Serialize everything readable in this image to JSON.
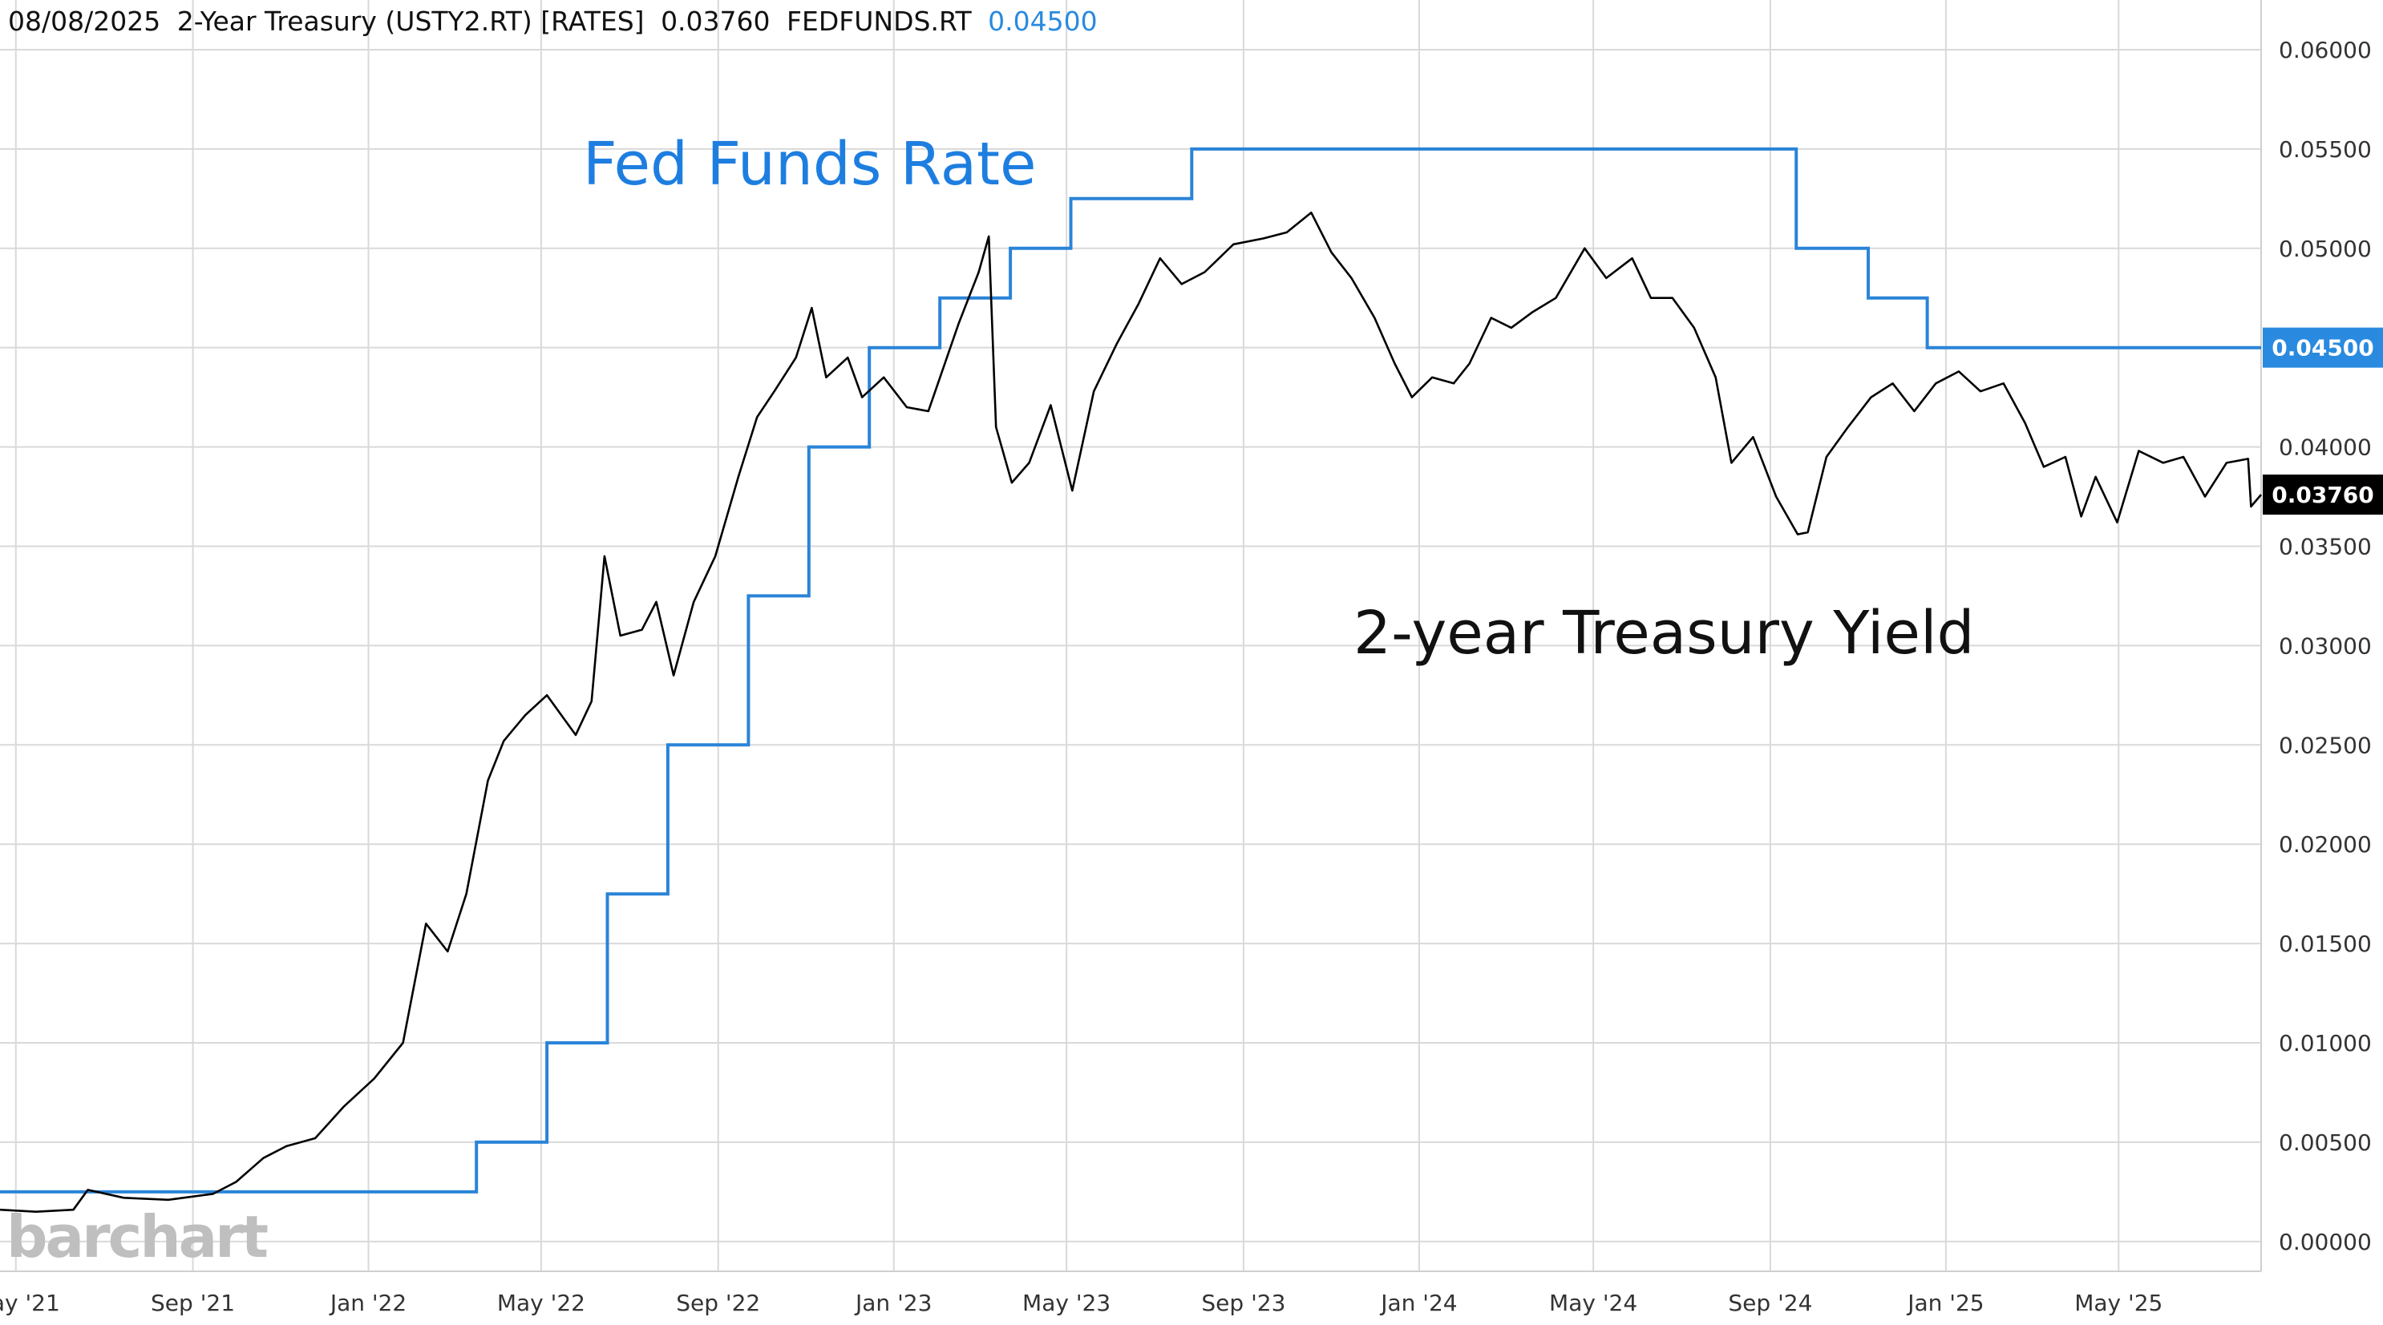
{
  "header": {
    "date": "08/08/2025",
    "primary_label": "2-Year Treasury (USTY2.RT) [RATES]",
    "primary_value": "0.03760",
    "secondary_label": "FEDFUNDS.RT",
    "secondary_value": "0.04500"
  },
  "annotations": {
    "fed_funds": "Fed Funds Rate",
    "treasury": "2-year Treasury Yield"
  },
  "watermark": "barchart",
  "badges": {
    "fed_last": "0.04500",
    "ust_last": "0.03760"
  },
  "colors": {
    "fed": "#2a84d8",
    "treasury": "#000000",
    "grid": "#d9d9d9",
    "fed_badge": "#2a8adf",
    "ust_badge": "#000000"
  },
  "chart_data": {
    "type": "line",
    "x_type": "date",
    "xlim": [
      "2021-04-20",
      "2025-08-08"
    ],
    "ylim": [
      -0.0015,
      0.0625
    ],
    "y_ticks": [
      0.0,
      0.005,
      0.01,
      0.015,
      0.02,
      0.025,
      0.03,
      0.035,
      0.04,
      0.045,
      0.05,
      0.055,
      0.06
    ],
    "y_tick_labels": [
      "0.00000",
      "0.00500",
      "0.01000",
      "0.01500",
      "0.02000",
      "0.02500",
      "0.03000",
      "0.03500",
      "0.04000",
      "0.04500",
      "0.05000",
      "0.05500",
      "0.06000"
    ],
    "x_ticks": [
      "2021-05-01",
      "2021-09-01",
      "2022-01-01",
      "2022-05-01",
      "2022-09-01",
      "2023-01-01",
      "2023-05-01",
      "2023-09-01",
      "2024-01-01",
      "2024-05-01",
      "2024-09-01",
      "2025-01-01",
      "2025-05-01"
    ],
    "x_tick_labels": [
      "May '21",
      "Sep '21",
      "Jan '22",
      "May '22",
      "Sep '22",
      "Jan '23",
      "May '23",
      "Sep '23",
      "Jan '24",
      "May '24",
      "Sep '24",
      "Jan '25",
      "May '25"
    ],
    "grid": true,
    "series": [
      {
        "name": "FEDFUNDS.RT",
        "step": true,
        "points": [
          [
            "2021-04-20",
            0.0025
          ],
          [
            "2022-03-17",
            0.005
          ],
          [
            "2022-05-05",
            0.01
          ],
          [
            "2022-06-16",
            0.0175
          ],
          [
            "2022-07-28",
            0.025
          ],
          [
            "2022-09-22",
            0.0325
          ],
          [
            "2022-11-03",
            0.04
          ],
          [
            "2022-12-15",
            0.045
          ],
          [
            "2023-02-02",
            0.0475
          ],
          [
            "2023-03-23",
            0.05
          ],
          [
            "2023-05-04",
            0.0525
          ],
          [
            "2023-07-27",
            0.055
          ],
          [
            "2024-09-19",
            0.05
          ],
          [
            "2024-11-08",
            0.0475
          ],
          [
            "2024-12-19",
            0.045
          ],
          [
            "2025-08-08",
            0.045
          ]
        ]
      },
      {
        "name": "USTY2.RT",
        "points": [
          [
            "2021-04-20",
            0.0016
          ],
          [
            "2021-05-15",
            0.0015
          ],
          [
            "2021-06-10",
            0.0016
          ],
          [
            "2021-06-20",
            0.0026
          ],
          [
            "2021-07-15",
            0.0022
          ],
          [
            "2021-08-15",
            0.0021
          ],
          [
            "2021-09-15",
            0.0024
          ],
          [
            "2021-10-01",
            0.003
          ],
          [
            "2021-10-20",
            0.0042
          ],
          [
            "2021-11-05",
            0.0048
          ],
          [
            "2021-11-25",
            0.0052
          ],
          [
            "2021-12-15",
            0.0068
          ],
          [
            "2022-01-05",
            0.0082
          ],
          [
            "2022-01-25",
            0.01
          ],
          [
            "2022-02-10",
            0.016
          ],
          [
            "2022-02-25",
            0.0146
          ],
          [
            "2022-03-10",
            0.0175
          ],
          [
            "2022-03-25",
            0.0232
          ],
          [
            "2022-04-05",
            0.0252
          ],
          [
            "2022-04-20",
            0.0265
          ],
          [
            "2022-05-05",
            0.0275
          ],
          [
            "2022-05-25",
            0.0255
          ],
          [
            "2022-06-05",
            0.0272
          ],
          [
            "2022-06-14",
            0.0345
          ],
          [
            "2022-06-25",
            0.0305
          ],
          [
            "2022-07-10",
            0.0308
          ],
          [
            "2022-07-20",
            0.0322
          ],
          [
            "2022-08-01",
            0.0285
          ],
          [
            "2022-08-15",
            0.0322
          ],
          [
            "2022-08-30",
            0.0345
          ],
          [
            "2022-09-15",
            0.0385
          ],
          [
            "2022-09-28",
            0.0415
          ],
          [
            "2022-10-10",
            0.0428
          ],
          [
            "2022-10-25",
            0.0445
          ],
          [
            "2022-11-05",
            0.047
          ],
          [
            "2022-11-15",
            0.0435
          ],
          [
            "2022-11-30",
            0.0445
          ],
          [
            "2022-12-10",
            0.0425
          ],
          [
            "2022-12-25",
            0.0435
          ],
          [
            "2023-01-10",
            0.042
          ],
          [
            "2023-01-25",
            0.0418
          ],
          [
            "2023-02-15",
            0.0462
          ],
          [
            "2023-03-01",
            0.0488
          ],
          [
            "2023-03-08",
            0.0506
          ],
          [
            "2023-03-13",
            0.041
          ],
          [
            "2023-03-24",
            0.0382
          ],
          [
            "2023-04-05",
            0.0392
          ],
          [
            "2023-04-20",
            0.0421
          ],
          [
            "2023-05-05",
            0.0378
          ],
          [
            "2023-05-20",
            0.0428
          ],
          [
            "2023-06-05",
            0.0452
          ],
          [
            "2023-06-20",
            0.0472
          ],
          [
            "2023-07-05",
            0.0495
          ],
          [
            "2023-07-20",
            0.0482
          ],
          [
            "2023-08-05",
            0.0488
          ],
          [
            "2023-08-25",
            0.0502
          ],
          [
            "2023-09-15",
            0.0505
          ],
          [
            "2023-10-01",
            0.0508
          ],
          [
            "2023-10-18",
            0.0518
          ],
          [
            "2023-11-01",
            0.0498
          ],
          [
            "2023-11-15",
            0.0485
          ],
          [
            "2023-12-01",
            0.0465
          ],
          [
            "2023-12-15",
            0.0442
          ],
          [
            "2023-12-27",
            0.0425
          ],
          [
            "2024-01-10",
            0.0435
          ],
          [
            "2024-01-25",
            0.0432
          ],
          [
            "2024-02-05",
            0.0442
          ],
          [
            "2024-02-20",
            0.0465
          ],
          [
            "2024-03-05",
            0.046
          ],
          [
            "2024-03-20",
            0.0468
          ],
          [
            "2024-04-05",
            0.0475
          ],
          [
            "2024-04-25",
            0.05
          ],
          [
            "2024-05-10",
            0.0485
          ],
          [
            "2024-05-28",
            0.0495
          ],
          [
            "2024-06-10",
            0.0475
          ],
          [
            "2024-06-25",
            0.0475
          ],
          [
            "2024-07-10",
            0.046
          ],
          [
            "2024-07-25",
            0.0435
          ],
          [
            "2024-08-05",
            0.0392
          ],
          [
            "2024-08-20",
            0.0405
          ],
          [
            "2024-09-05",
            0.0375
          ],
          [
            "2024-09-20",
            0.0356
          ],
          [
            "2024-09-27",
            0.0357
          ],
          [
            "2024-10-10",
            0.0395
          ],
          [
            "2024-10-25",
            0.041
          ],
          [
            "2024-11-10",
            0.0425
          ],
          [
            "2024-11-25",
            0.0432
          ],
          [
            "2024-12-10",
            0.0418
          ],
          [
            "2024-12-25",
            0.0432
          ],
          [
            "2025-01-10",
            0.0438
          ],
          [
            "2025-01-25",
            0.0428
          ],
          [
            "2025-02-10",
            0.0432
          ],
          [
            "2025-02-25",
            0.0412
          ],
          [
            "2025-03-10",
            0.039
          ],
          [
            "2025-03-25",
            0.0395
          ],
          [
            "2025-04-05",
            0.0365
          ],
          [
            "2025-04-15",
            0.0385
          ],
          [
            "2025-04-30",
            0.0362
          ],
          [
            "2025-05-15",
            0.0398
          ],
          [
            "2025-06-01",
            0.0392
          ],
          [
            "2025-06-15",
            0.0395
          ],
          [
            "2025-06-30",
            0.0375
          ],
          [
            "2025-07-15",
            0.0392
          ],
          [
            "2025-07-30",
            0.0394
          ],
          [
            "2025-08-01",
            0.037
          ],
          [
            "2025-08-08",
            0.0376
          ]
        ]
      }
    ]
  }
}
